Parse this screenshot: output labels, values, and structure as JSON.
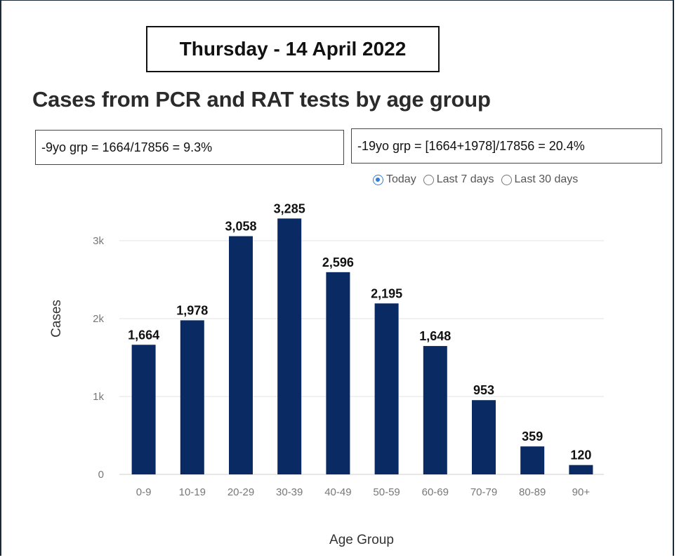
{
  "date_banner": "Thursday - 14 April 2022",
  "chart_title": "Cases from PCR and RAT tests by age group",
  "notes": {
    "note1": "-9yo grp = 1664/17856 = 9.3%",
    "note2": "-19yo grp = [1664+1978]/17856 = 20.4%"
  },
  "radio_options": [
    {
      "label": "Today",
      "selected": true
    },
    {
      "label": "Last 7 days",
      "selected": false
    },
    {
      "label": "Last 30 days",
      "selected": false
    }
  ],
  "colors": {
    "bar": "#0a2a63",
    "grid": "#e3e3e3",
    "radio_accent": "#2f7fd6"
  },
  "chart_data": {
    "type": "bar",
    "categories": [
      "0-9",
      "10-19",
      "20-29",
      "30-39",
      "40-49",
      "50-59",
      "60-69",
      "70-79",
      "80-89",
      "90+"
    ],
    "values": [
      1664,
      1978,
      3058,
      3285,
      2596,
      2195,
      1648,
      953,
      359,
      120
    ],
    "value_labels": [
      "1,664",
      "1,978",
      "3,058",
      "3,285",
      "2,596",
      "2,195",
      "1,648",
      "953",
      "359",
      "120"
    ],
    "xlabel": "Age Group",
    "ylabel": "Cases",
    "yticks": [
      0,
      1000,
      2000,
      3000
    ],
    "ytick_labels": [
      "0",
      "1k",
      "2k",
      "3k"
    ],
    "ylim": [
      0,
      3000
    ],
    "grid": true
  }
}
